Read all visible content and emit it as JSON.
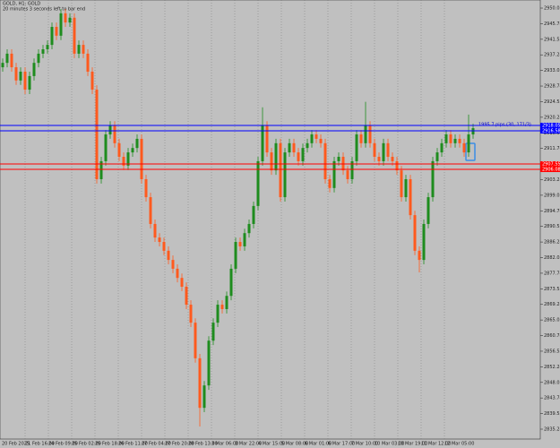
{
  "chart_data": {
    "type": "candlestick",
    "title": "GOLD, H1: GOLD",
    "subtitle": "20 minutes 3 seconds left to bar end",
    "annotation": "1995.7 pips (30, 171/3)",
    "ylim": [
      2832.59,
      2952.23
    ],
    "yticks": [
      2950.03,
      2945.78,
      2941.53,
      2937.28,
      2933.03,
      2928.78,
      2924.53,
      2920.28,
      2916.03,
      2911.78,
      2907.53,
      2903.28,
      2899.03,
      2894.78,
      2890.53,
      2886.28,
      2882.03,
      2877.78,
      2873.53,
      2869.28,
      2865.03,
      2860.78,
      2856.53,
      2852.28,
      2848.03,
      2843.78,
      2839.53,
      2835.28
    ],
    "time_labels": [
      "20 Feb 2025",
      "21 Feb 16:00",
      "24 Feb 09:00",
      "25 Feb 02:00",
      "25 Feb 18:00",
      "26 Feb 11:00",
      "27 Feb 04:00",
      "27 Feb 20:00",
      "28 Feb 13:00",
      "3 Mar 06:00",
      "3 Mar 22:00",
      "4 Mar 15:00",
      "5 Mar 08:00",
      "6 Mar 01:00",
      "6 Mar 17:00",
      "7 Mar 10:00",
      "10 Mar 03:00",
      "10 Mar 19:00",
      "11 Mar 12:00",
      "12 Mar 05:00"
    ],
    "grid": true,
    "up_color": "#1e8c1e",
    "down_color": "#ff5a1e",
    "open": [
      2933.9,
      2935.1,
      2937.6,
      2933.9,
      2930.3,
      2932.7,
      2927.8,
      2931.5,
      2935.1,
      2937.6,
      2938.8,
      2940.0,
      2944.9,
      2942.5,
      2948.6,
      2946.1,
      2947.4,
      2937.6,
      2940.0,
      2937.6,
      2932.7,
      2927.8,
      2903.4,
      2908.3,
      2915.6,
      2918.0,
      2913.2,
      2909.5,
      2907.1,
      2910.7,
      2911.9,
      2914.4,
      2903.4,
      2898.5,
      2891.2,
      2887.5,
      2886.3,
      2883.9,
      2881.4,
      2879.0,
      2876.5,
      2874.1,
      2869.2,
      2864.3,
      2854.6,
      2841.1,
      2847.2,
      2859.4,
      2864.3,
      2869.2,
      2868.0,
      2871.6,
      2879.0,
      2886.3,
      2885.1,
      2888.7,
      2891.2,
      2896.1,
      2908.3,
      2918.0,
      2910.7,
      2905.8,
      2913.2,
      2898.5,
      2910.7,
      2913.2,
      2910.7,
      2908.3,
      2911.9,
      2913.2,
      2915.6,
      2914.4,
      2913.2,
      2903.4,
      2901.0,
      2908.3,
      2909.5,
      2905.8,
      2903.4,
      2908.3,
      2915.6,
      2913.2,
      2918.0,
      2913.2,
      2909.5,
      2908.3,
      2913.2,
      2909.5,
      2908.3,
      2905.8,
      2898.5,
      2903.4,
      2893.6,
      2883.9,
      2881.4,
      2891.2,
      2898.5,
      2908.3,
      2910.7,
      2913.2,
      2915.6,
      2913.2,
      2914.4,
      2913.2,
      2910.7,
      2915.6
    ],
    "high": [
      2936.3,
      2938.8,
      2938.8,
      2935.1,
      2933.9,
      2933.9,
      2932.7,
      2936.3,
      2938.8,
      2940.0,
      2941.2,
      2946.1,
      2946.1,
      2949.8,
      2949.8,
      2948.6,
      2948.6,
      2941.2,
      2941.2,
      2938.8,
      2933.9,
      2929.0,
      2909.5,
      2916.8,
      2919.2,
      2919.2,
      2914.4,
      2910.7,
      2911.9,
      2913.1,
      2915.6,
      2915.6,
      2904.6,
      2899.7,
      2892.4,
      2888.7,
      2887.5,
      2885.1,
      2882.6,
      2880.2,
      2877.7,
      2875.3,
      2870.4,
      2865.5,
      2855.8,
      2848.4,
      2860.6,
      2865.5,
      2870.4,
      2870.4,
      2872.8,
      2880.2,
      2887.5,
      2887.5,
      2889.9,
      2892.4,
      2897.3,
      2909.5,
      2923.0,
      2919.2,
      2911.9,
      2914.4,
      2914.4,
      2911.9,
      2914.4,
      2914.4,
      2911.9,
      2913.1,
      2914.4,
      2916.8,
      2916.8,
      2915.6,
      2914.4,
      2904.6,
      2909.5,
      2910.7,
      2910.7,
      2907.0,
      2909.5,
      2916.8,
      2916.8,
      2924.5,
      2919.2,
      2914.4,
      2910.7,
      2914.4,
      2914.4,
      2910.7,
      2909.5,
      2907.0,
      2904.6,
      2904.6,
      2894.8,
      2885.1,
      2892.4,
      2899.7,
      2909.5,
      2911.9,
      2914.4,
      2916.8,
      2916.8,
      2915.6,
      2915.6,
      2914.4,
      2921.0,
      2918.5
    ],
    "low": [
      2932.7,
      2933.9,
      2932.7,
      2929.1,
      2929.1,
      2926.6,
      2926.6,
      2930.3,
      2933.9,
      2936.4,
      2937.6,
      2938.8,
      2941.3,
      2941.3,
      2944.9,
      2944.9,
      2936.4,
      2936.4,
      2936.4,
      2931.5,
      2926.6,
      2902.2,
      2902.2,
      2907.1,
      2914.4,
      2912.0,
      2908.3,
      2905.9,
      2905.9,
      2909.5,
      2910.7,
      2902.2,
      2897.3,
      2890.0,
      2886.3,
      2885.1,
      2882.7,
      2880.2,
      2877.8,
      2875.3,
      2872.9,
      2868.0,
      2863.1,
      2853.4,
      2836.0,
      2839.9,
      2846.0,
      2858.2,
      2863.1,
      2866.8,
      2866.8,
      2870.4,
      2877.8,
      2883.9,
      2883.9,
      2887.5,
      2890.0,
      2894.9,
      2907.1,
      2909.5,
      2904.6,
      2904.6,
      2897.3,
      2897.3,
      2909.5,
      2909.5,
      2907.1,
      2907.1,
      2910.7,
      2912.0,
      2913.2,
      2912.0,
      2902.2,
      2899.8,
      2899.8,
      2907.1,
      2904.6,
      2902.2,
      2902.2,
      2907.1,
      2912.0,
      2912.0,
      2912.0,
      2908.3,
      2907.1,
      2907.1,
      2908.3,
      2907.1,
      2904.6,
      2897.3,
      2897.3,
      2892.4,
      2882.7,
      2878.0,
      2880.2,
      2890.0,
      2897.3,
      2907.1,
      2909.5,
      2912.0,
      2912.0,
      2912.0,
      2912.0,
      2909.5,
      2909.5,
      2914.4
    ],
    "close": [
      2935.1,
      2937.6,
      2933.9,
      2930.3,
      2932.7,
      2927.8,
      2931.5,
      2935.1,
      2937.6,
      2938.8,
      2940.0,
      2944.9,
      2942.5,
      2948.6,
      2946.1,
      2947.4,
      2937.6,
      2940.0,
      2937.6,
      2932.7,
      2927.8,
      2903.4,
      2908.3,
      2915.6,
      2918.0,
      2913.2,
      2909.5,
      2907.1,
      2910.7,
      2911.9,
      2914.4,
      2903.4,
      2898.5,
      2891.2,
      2887.5,
      2886.3,
      2883.9,
      2881.4,
      2879.0,
      2876.5,
      2874.1,
      2869.2,
      2864.3,
      2854.6,
      2841.1,
      2847.2,
      2859.4,
      2864.3,
      2869.2,
      2868.0,
      2871.6,
      2879.0,
      2886.3,
      2885.1,
      2888.7,
      2891.2,
      2896.1,
      2908.3,
      2918.0,
      2910.7,
      2905.8,
      2913.2,
      2898.5,
      2910.7,
      2913.2,
      2910.7,
      2908.3,
      2911.9,
      2913.2,
      2915.6,
      2914.4,
      2913.2,
      2903.4,
      2901.0,
      2908.3,
      2909.5,
      2905.8,
      2903.4,
      2908.3,
      2915.6,
      2913.2,
      2918.0,
      2913.2,
      2909.5,
      2908.3,
      2913.2,
      2909.5,
      2908.3,
      2905.8,
      2898.5,
      2903.4,
      2893.6,
      2883.9,
      2881.4,
      2891.2,
      2898.5,
      2908.3,
      2910.7,
      2913.2,
      2915.6,
      2913.2,
      2914.4,
      2913.2,
      2910.7,
      2915.6,
      2917.3
    ],
    "horizontal_lines": [
      {
        "value": 2918.05,
        "color": "#0000ff"
      },
      {
        "value": 2916.58,
        "color": "#0000ff"
      },
      {
        "value": 2907.55,
        "color": "#ff0000"
      },
      {
        "value": 2906.08,
        "color": "#ff0000"
      }
    ]
  }
}
